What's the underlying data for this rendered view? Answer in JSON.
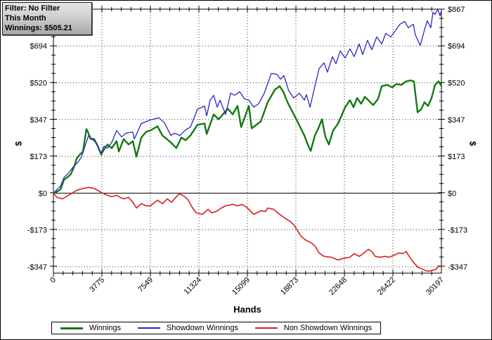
{
  "tooltip": {
    "line1": "Filter: No Filter",
    "line2": "This Month",
    "line3": "Winnings: $505.21"
  },
  "axes": {
    "x_title": "Hands",
    "y_title_left": "$",
    "y_title_right": "$",
    "y_tick_labels": [
      "$867",
      "$694",
      "$520",
      "$347",
      "$173",
      "$0",
      "-$173",
      "-$347"
    ],
    "y_tick_values": [
      867,
      694,
      520,
      347,
      173,
      0,
      -173,
      -347
    ],
    "x_tick_labels": [
      "0",
      "3775",
      "7549",
      "11324",
      "15099",
      "18873",
      "22648",
      "26422",
      "30197"
    ],
    "x_tick_values": [
      0,
      3775,
      7549,
      11324,
      15099,
      18873,
      22648,
      26422,
      30197
    ]
  },
  "legend": {
    "items": [
      {
        "label": "Winnings",
        "color": "#147814",
        "thickness": 3
      },
      {
        "label": "Showdown Winnings",
        "color": "#2828c8",
        "thickness": 2
      },
      {
        "label": "Non Showdown Winnings",
        "color": "#dc1e1e",
        "thickness": 2
      }
    ]
  },
  "chart_data": {
    "type": "line",
    "xlabel": "Hands",
    "ylabel": "$",
    "xlim": [
      0,
      30197
    ],
    "ylim": [
      -377,
      867
    ],
    "grid": "dotted lines at major ticks, solid line at $0",
    "legend_position": "bottom",
    "series": [
      {
        "name": "Winnings",
        "color": "#147814",
        "width": 2.4,
        "points": [
          [
            0,
            0
          ],
          [
            300,
            8
          ],
          [
            550,
            17
          ],
          [
            820,
            63
          ],
          [
            1100,
            75
          ],
          [
            1370,
            90
          ],
          [
            1640,
            129
          ],
          [
            1800,
            162
          ],
          [
            2020,
            179
          ],
          [
            2300,
            196
          ],
          [
            2570,
            302
          ],
          [
            2680,
            289
          ],
          [
            2900,
            255
          ],
          [
            3170,
            255
          ],
          [
            3450,
            222
          ],
          [
            3720,
            182
          ],
          [
            3940,
            206
          ],
          [
            4210,
            229
          ],
          [
            4540,
            212
          ],
          [
            4920,
            245
          ],
          [
            5090,
            196
          ],
          [
            5470,
            255
          ],
          [
            5850,
            229
          ],
          [
            6180,
            245
          ],
          [
            6460,
            172
          ],
          [
            6840,
            262
          ],
          [
            7220,
            289
          ],
          [
            7550,
            295
          ],
          [
            8100,
            315
          ],
          [
            8480,
            272
          ],
          [
            9140,
            239
          ],
          [
            9570,
            212
          ],
          [
            9960,
            262
          ],
          [
            10280,
            249
          ],
          [
            10670,
            272
          ],
          [
            11210,
            322
          ],
          [
            11760,
            328
          ],
          [
            11930,
            279
          ],
          [
            12470,
            371
          ],
          [
            12860,
            348
          ],
          [
            13570,
            398
          ],
          [
            13950,
            371
          ],
          [
            14330,
            411
          ],
          [
            14610,
            311
          ],
          [
            15210,
            411
          ],
          [
            15430,
            305
          ],
          [
            16140,
            338
          ],
          [
            16680,
            428
          ],
          [
            17230,
            487
          ],
          [
            17610,
            504
          ],
          [
            17890,
            478
          ],
          [
            18220,
            428
          ],
          [
            18710,
            371
          ],
          [
            19040,
            332
          ],
          [
            19530,
            272
          ],
          [
            19800,
            229
          ],
          [
            20020,
            199
          ],
          [
            20350,
            272
          ],
          [
            20620,
            305
          ],
          [
            20900,
            348
          ],
          [
            21170,
            265
          ],
          [
            21440,
            229
          ],
          [
            21770,
            295
          ],
          [
            22150,
            328
          ],
          [
            22430,
            365
          ],
          [
            22700,
            405
          ],
          [
            23080,
            438
          ],
          [
            23360,
            405
          ],
          [
            23630,
            448
          ],
          [
            23960,
            421
          ],
          [
            24230,
            454
          ],
          [
            24510,
            438
          ],
          [
            24890,
            415
          ],
          [
            25270,
            444
          ],
          [
            25550,
            504
          ],
          [
            25980,
            510
          ],
          [
            26370,
            498
          ],
          [
            26690,
            514
          ],
          [
            27080,
            510
          ],
          [
            27460,
            527
          ],
          [
            27790,
            531
          ],
          [
            28060,
            527
          ],
          [
            28340,
            381
          ],
          [
            28610,
            394
          ],
          [
            28880,
            428
          ],
          [
            29160,
            411
          ],
          [
            29430,
            448
          ],
          [
            29700,
            510
          ],
          [
            29980,
            527
          ],
          [
            30197,
            505
          ]
        ]
      },
      {
        "name": "Showdown Winnings",
        "color": "#2828c8",
        "width": 1.3,
        "points": [
          [
            0,
            0
          ],
          [
            550,
            33
          ],
          [
            820,
            73
          ],
          [
            1200,
            96
          ],
          [
            1530,
            123
          ],
          [
            1920,
            146
          ],
          [
            2190,
            172
          ],
          [
            2460,
            222
          ],
          [
            2740,
            272
          ],
          [
            3010,
            255
          ],
          [
            3280,
            239
          ],
          [
            3560,
            206
          ],
          [
            3720,
            189
          ],
          [
            3940,
            222
          ],
          [
            4210,
            212
          ],
          [
            4540,
            239
          ],
          [
            4920,
            295
          ],
          [
            5310,
            265
          ],
          [
            5630,
            282
          ],
          [
            6180,
            288
          ],
          [
            6290,
            255
          ],
          [
            6840,
            328
          ],
          [
            7550,
            345
          ],
          [
            8210,
            355
          ],
          [
            8640,
            332
          ],
          [
            9140,
            272
          ],
          [
            9410,
            282
          ],
          [
            9850,
            272
          ],
          [
            10230,
            295
          ],
          [
            10670,
            312
          ],
          [
            11210,
            395
          ],
          [
            11760,
            411
          ],
          [
            11930,
            365
          ],
          [
            12200,
            438
          ],
          [
            12470,
            461
          ],
          [
            12750,
            405
          ],
          [
            12970,
            438
          ],
          [
            13400,
            371
          ],
          [
            13790,
            471
          ],
          [
            14110,
            461
          ],
          [
            14500,
            478
          ],
          [
            14880,
            444
          ],
          [
            15210,
            438
          ],
          [
            15590,
            405
          ],
          [
            15970,
            421
          ],
          [
            16410,
            471
          ],
          [
            16960,
            564
          ],
          [
            17390,
            560
          ],
          [
            17670,
            537
          ],
          [
            17940,
            554
          ],
          [
            18320,
            481
          ],
          [
            18710,
            448
          ],
          [
            19150,
            471
          ],
          [
            19530,
            438
          ],
          [
            19690,
            464
          ],
          [
            19970,
            405
          ],
          [
            20350,
            504
          ],
          [
            20680,
            587
          ],
          [
            21060,
            614
          ],
          [
            21330,
            570
          ],
          [
            21720,
            643
          ],
          [
            21990,
            610
          ],
          [
            22320,
            670
          ],
          [
            22700,
            637
          ],
          [
            23080,
            680
          ],
          [
            23410,
            643
          ],
          [
            23800,
            703
          ],
          [
            24070,
            653
          ],
          [
            24450,
            720
          ],
          [
            24780,
            676
          ],
          [
            25160,
            736
          ],
          [
            25550,
            703
          ],
          [
            25870,
            753
          ],
          [
            26260,
            736
          ],
          [
            26530,
            759
          ],
          [
            26970,
            796
          ],
          [
            27350,
            809
          ],
          [
            27620,
            779
          ],
          [
            28010,
            796
          ],
          [
            28170,
            746
          ],
          [
            28550,
            696
          ],
          [
            28880,
            769
          ],
          [
            29100,
            812
          ],
          [
            29370,
            779
          ],
          [
            29540,
            852
          ],
          [
            29700,
            842
          ],
          [
            29920,
            867
          ],
          [
            30080,
            836
          ],
          [
            30197,
            860
          ]
        ]
      },
      {
        "name": "Non Showdown Winnings",
        "color": "#dc1e1e",
        "width": 1.6,
        "points": [
          [
            0,
            0
          ],
          [
            270,
            -20
          ],
          [
            710,
            -27
          ],
          [
            1090,
            -13
          ],
          [
            1370,
            -3
          ],
          [
            1800,
            13
          ],
          [
            2190,
            20
          ],
          [
            2740,
            27
          ],
          [
            3120,
            23
          ],
          [
            3450,
            13
          ],
          [
            3830,
            0
          ],
          [
            4210,
            -10
          ],
          [
            4540,
            -17
          ],
          [
            4920,
            -10
          ],
          [
            5200,
            -20
          ],
          [
            5470,
            -27
          ],
          [
            5850,
            -20
          ],
          [
            6180,
            -43
          ],
          [
            6460,
            -70
          ],
          [
            6840,
            -50
          ],
          [
            7220,
            -60
          ],
          [
            7550,
            -60
          ],
          [
            8100,
            -33
          ],
          [
            8480,
            -50
          ],
          [
            8860,
            -27
          ],
          [
            9190,
            -43
          ],
          [
            9680,
            -10
          ],
          [
            9850,
            -3
          ],
          [
            10230,
            -17
          ],
          [
            10500,
            -33
          ],
          [
            10830,
            -70
          ],
          [
            11110,
            -93
          ],
          [
            11600,
            -100
          ],
          [
            12040,
            -76
          ],
          [
            12310,
            -93
          ],
          [
            12690,
            -86
          ],
          [
            13070,
            -70
          ],
          [
            13400,
            -60
          ],
          [
            13950,
            -53
          ],
          [
            14330,
            -60
          ],
          [
            14660,
            -53
          ],
          [
            15040,
            -66
          ],
          [
            15590,
            -100
          ],
          [
            16140,
            -83
          ],
          [
            16520,
            -86
          ],
          [
            16680,
            -70
          ],
          [
            17120,
            -76
          ],
          [
            17610,
            -100
          ],
          [
            18050,
            -119
          ],
          [
            18490,
            -136
          ],
          [
            18760,
            -153
          ],
          [
            19250,
            -202
          ],
          [
            19580,
            -219
          ],
          [
            20080,
            -235
          ],
          [
            20350,
            -249
          ],
          [
            20680,
            -282
          ],
          [
            21060,
            -298
          ],
          [
            21610,
            -302
          ],
          [
            22150,
            -315
          ],
          [
            22540,
            -308
          ],
          [
            23080,
            -302
          ],
          [
            23410,
            -285
          ],
          [
            23800,
            -298
          ],
          [
            24180,
            -282
          ],
          [
            24510,
            -265
          ],
          [
            24780,
            -275
          ],
          [
            25050,
            -298
          ],
          [
            25440,
            -302
          ],
          [
            25820,
            -298
          ],
          [
            26150,
            -302
          ],
          [
            26530,
            -292
          ],
          [
            26910,
            -282
          ],
          [
            27190,
            -285
          ],
          [
            27460,
            -275
          ],
          [
            27620,
            -292
          ],
          [
            28010,
            -325
          ],
          [
            28340,
            -348
          ],
          [
            28720,
            -358
          ],
          [
            29100,
            -368
          ],
          [
            29430,
            -365
          ],
          [
            29810,
            -358
          ],
          [
            29980,
            -342
          ],
          [
            30197,
            -348
          ]
        ]
      }
    ]
  }
}
